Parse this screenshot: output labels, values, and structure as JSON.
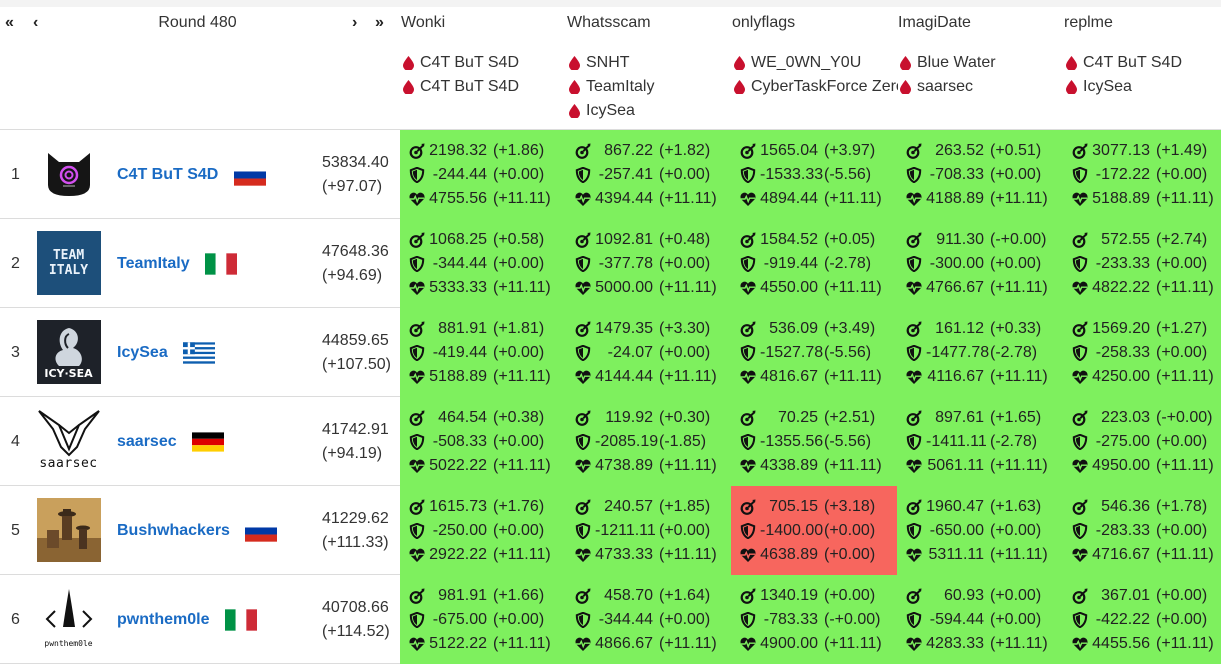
{
  "nav": {
    "first": "«",
    "prev": "‹",
    "next": "›",
    "last": "»",
    "round_label": "Round 480"
  },
  "services": [
    {
      "name": "Wonki",
      "first_bloods": [
        "C4T BuT S4D",
        "C4T BuT S4D"
      ]
    },
    {
      "name": "Whatsscam",
      "first_bloods": [
        "SNHT",
        "TeamItaly",
        "IcySea"
      ]
    },
    {
      "name": "onlyflags",
      "first_bloods": [
        "WE_0WN_Y0U",
        "CyberTaskForce Zero"
      ]
    },
    {
      "name": "ImagiDate",
      "first_bloods": [
        "Blue Water",
        "saarsec"
      ]
    },
    {
      "name": "replme",
      "first_bloods": [
        "C4T BuT S4D",
        "IcySea"
      ]
    }
  ],
  "colors": {
    "service_up": "#7ef05e",
    "service_down": "#f7665e",
    "team_link": "#1a6bc4",
    "blood": "#c8102e"
  },
  "teams": [
    {
      "rank": "1",
      "name": "C4T BuT S4D",
      "logo": "cat-logo",
      "flag": "russia-flag",
      "score": "53834.40",
      "score_delta": "(+97.07)",
      "services": [
        {
          "status": "up",
          "attack": "2198.32",
          "attack_delta": "(+1.86)",
          "defense": "-244.44",
          "defense_delta": "(+0.00)",
          "sla": "4755.56",
          "sla_delta": "(+11.11)"
        },
        {
          "status": "up",
          "attack": "867.22",
          "attack_delta": "(+1.82)",
          "defense": "-257.41",
          "defense_delta": "(+0.00)",
          "sla": "4394.44",
          "sla_delta": "(+11.11)"
        },
        {
          "status": "up",
          "attack": "1565.04",
          "attack_delta": "(+3.97)",
          "defense": "-1533.33",
          "defense_delta": "(-5.56)",
          "sla": "4894.44",
          "sla_delta": "(+11.11)"
        },
        {
          "status": "up",
          "attack": "263.52",
          "attack_delta": "(+0.51)",
          "defense": "-708.33",
          "defense_delta": "(+0.00)",
          "sla": "4188.89",
          "sla_delta": "(+11.11)"
        },
        {
          "status": "up",
          "attack": "3077.13",
          "attack_delta": "(+1.49)",
          "defense": "-172.22",
          "defense_delta": "(+0.00)",
          "sla": "5188.89",
          "sla_delta": "(+11.11)"
        }
      ]
    },
    {
      "rank": "2",
      "name": "TeamItaly",
      "logo": "teamitaly-logo",
      "flag": "italy-flag",
      "logo_text": "TEAM ITALY",
      "score": "47648.36",
      "score_delta": "(+94.69)",
      "services": [
        {
          "status": "up",
          "attack": "1068.25",
          "attack_delta": "(+0.58)",
          "defense": "-344.44",
          "defense_delta": "(+0.00)",
          "sla": "5333.33",
          "sla_delta": "(+11.11)"
        },
        {
          "status": "up",
          "attack": "1092.81",
          "attack_delta": "(+0.48)",
          "defense": "-377.78",
          "defense_delta": "(+0.00)",
          "sla": "5000.00",
          "sla_delta": "(+11.11)"
        },
        {
          "status": "up",
          "attack": "1584.52",
          "attack_delta": "(+0.05)",
          "defense": "-919.44",
          "defense_delta": "(-2.78)",
          "sla": "4550.00",
          "sla_delta": "(+11.11)"
        },
        {
          "status": "up",
          "attack": "911.30",
          "attack_delta": "(-+0.00)",
          "defense": "-300.00",
          "defense_delta": "(+0.00)",
          "sla": "4766.67",
          "sla_delta": "(+11.11)"
        },
        {
          "status": "up",
          "attack": "572.55",
          "attack_delta": "(+2.74)",
          "defense": "-233.33",
          "defense_delta": "(+0.00)",
          "sla": "4822.22",
          "sla_delta": "(+11.11)"
        }
      ]
    },
    {
      "rank": "3",
      "name": "IcySea",
      "logo": "icysea-logo",
      "flag": "greece-flag",
      "logo_text": "ICY·SEA",
      "score": "44859.65",
      "score_delta": "(+107.50)",
      "services": [
        {
          "status": "up",
          "attack": "881.91",
          "attack_delta": "(+1.81)",
          "defense": "-419.44",
          "defense_delta": "(+0.00)",
          "sla": "5188.89",
          "sla_delta": "(+11.11)"
        },
        {
          "status": "up",
          "attack": "1479.35",
          "attack_delta": "(+3.30)",
          "defense": "-24.07",
          "defense_delta": "(+0.00)",
          "sla": "4144.44",
          "sla_delta": "(+11.11)"
        },
        {
          "status": "up",
          "attack": "536.09",
          "attack_delta": "(+3.49)",
          "defense": "-1527.78",
          "defense_delta": "(-5.56)",
          "sla": "4816.67",
          "sla_delta": "(+11.11)"
        },
        {
          "status": "up",
          "attack": "161.12",
          "attack_delta": "(+0.33)",
          "defense": "-1477.78",
          "defense_delta": "(-2.78)",
          "sla": "4116.67",
          "sla_delta": "(+11.11)"
        },
        {
          "status": "up",
          "attack": "1569.20",
          "attack_delta": "(+1.27)",
          "defense": "-258.33",
          "defense_delta": "(+0.00)",
          "sla": "4250.00",
          "sla_delta": "(+11.11)"
        }
      ]
    },
    {
      "rank": "4",
      "name": "saarsec",
      "logo": "saarsec-logo",
      "flag": "germany-flag",
      "logo_text": "saarsec",
      "score": "41742.91",
      "score_delta": "(+94.19)",
      "services": [
        {
          "status": "up",
          "attack": "464.54",
          "attack_delta": "(+0.38)",
          "defense": "-508.33",
          "defense_delta": "(+0.00)",
          "sla": "5022.22",
          "sla_delta": "(+11.11)"
        },
        {
          "status": "up",
          "attack": "119.92",
          "attack_delta": "(+0.30)",
          "defense": "-2085.19",
          "defense_delta": "(-1.85)",
          "sla": "4738.89",
          "sla_delta": "(+11.11)"
        },
        {
          "status": "up",
          "attack": "70.25",
          "attack_delta": "(+2.51)",
          "defense": "-1355.56",
          "defense_delta": "(-5.56)",
          "sla": "4338.89",
          "sla_delta": "(+11.11)"
        },
        {
          "status": "up",
          "attack": "897.61",
          "attack_delta": "(+1.65)",
          "defense": "-1411.11",
          "defense_delta": "(-2.78)",
          "sla": "5061.11",
          "sla_delta": "(+11.11)"
        },
        {
          "status": "up",
          "attack": "223.03",
          "attack_delta": "(-+0.00)",
          "defense": "-275.00",
          "defense_delta": "(+0.00)",
          "sla": "4950.00",
          "sla_delta": "(+11.11)"
        }
      ]
    },
    {
      "rank": "5",
      "name": "Bushwhackers",
      "logo": "bushwhackers-logo",
      "flag": "russia-flag",
      "score": "41229.62",
      "score_delta": "(+111.33)",
      "services": [
        {
          "status": "up",
          "attack": "1615.73",
          "attack_delta": "(+1.76)",
          "defense": "-250.00",
          "defense_delta": "(+0.00)",
          "sla": "2922.22",
          "sla_delta": "(+11.11)"
        },
        {
          "status": "up",
          "attack": "240.57",
          "attack_delta": "(+1.85)",
          "defense": "-1211.11",
          "defense_delta": "(+0.00)",
          "sla": "4733.33",
          "sla_delta": "(+11.11)"
        },
        {
          "status": "down",
          "attack": "705.15",
          "attack_delta": "(+3.18)",
          "defense": "-1400.00",
          "defense_delta": "(+0.00)",
          "sla": "4638.89",
          "sla_delta": "(+0.00)"
        },
        {
          "status": "up",
          "attack": "1960.47",
          "attack_delta": "(+1.63)",
          "defense": "-650.00",
          "defense_delta": "(+0.00)",
          "sla": "5311.11",
          "sla_delta": "(+11.11)"
        },
        {
          "status": "up",
          "attack": "546.36",
          "attack_delta": "(+1.78)",
          "defense": "-283.33",
          "defense_delta": "(+0.00)",
          "sla": "4716.67",
          "sla_delta": "(+11.11)"
        }
      ]
    },
    {
      "rank": "6",
      "name": "pwnthem0le",
      "logo": "pwnthem0le-logo",
      "flag": "italy-flag",
      "logo_text": "pwnthem0le",
      "score": "40708.66",
      "score_delta": "(+114.52)",
      "services": [
        {
          "status": "up",
          "attack": "981.91",
          "attack_delta": "(+1.66)",
          "defense": "-675.00",
          "defense_delta": "(+0.00)",
          "sla": "5122.22",
          "sla_delta": "(+11.11)"
        },
        {
          "status": "up",
          "attack": "458.70",
          "attack_delta": "(+1.64)",
          "defense": "-344.44",
          "defense_delta": "(+0.00)",
          "sla": "4866.67",
          "sla_delta": "(+11.11)"
        },
        {
          "status": "up",
          "attack": "1340.19",
          "attack_delta": "(+0.00)",
          "defense": "-783.33",
          "defense_delta": "(-+0.00)",
          "sla": "4900.00",
          "sla_delta": "(+11.11)"
        },
        {
          "status": "up",
          "attack": "60.93",
          "attack_delta": "(+0.00)",
          "defense": "-594.44",
          "defense_delta": "(+0.00)",
          "sla": "4283.33",
          "sla_delta": "(+11.11)"
        },
        {
          "status": "up",
          "attack": "367.01",
          "attack_delta": "(+0.00)",
          "defense": "-422.22",
          "defense_delta": "(+0.00)",
          "sla": "4455.56",
          "sla_delta": "(+11.11)"
        }
      ]
    }
  ]
}
